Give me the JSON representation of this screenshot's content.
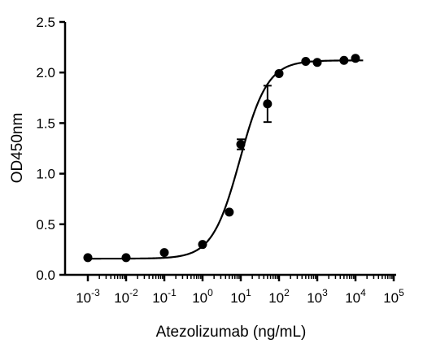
{
  "chart_data": {
    "type": "scatter",
    "title": "",
    "xlabel": "Atezolizumab (ng/mL)",
    "ylabel": "OD450nm",
    "x_scale": "log",
    "xlim": [
      0.001,
      100000
    ],
    "ylim": [
      0,
      2.5
    ],
    "x_ticks": [
      {
        "base": "10",
        "exp": "-3"
      },
      {
        "base": "10",
        "exp": "-2"
      },
      {
        "base": "10",
        "exp": "-1"
      },
      {
        "base": "10",
        "exp": "0"
      },
      {
        "base": "10",
        "exp": "1"
      },
      {
        "base": "10",
        "exp": "2"
      },
      {
        "base": "10",
        "exp": "3"
      },
      {
        "base": "10",
        "exp": "4"
      },
      {
        "base": "10",
        "exp": "5"
      }
    ],
    "y_ticks": [
      "0.0",
      "0.5",
      "1.0",
      "1.5",
      "2.0",
      "2.5"
    ],
    "grid": false,
    "points": [
      {
        "x": 0.001,
        "y": 0.17
      },
      {
        "x": 0.01,
        "y": 0.17
      },
      {
        "x": 0.1,
        "y": 0.22
      },
      {
        "x": 1,
        "y": 0.3
      },
      {
        "x": 5,
        "y": 0.62
      },
      {
        "x": 10,
        "y": 1.29,
        "err": 0.05
      },
      {
        "x": 50,
        "y": 1.69,
        "err": 0.18
      },
      {
        "x": 100,
        "y": 1.99
      },
      {
        "x": 500,
        "y": 2.11
      },
      {
        "x": 1000,
        "y": 2.1
      },
      {
        "x": 5000,
        "y": 2.12
      },
      {
        "x": 10000,
        "y": 2.14
      }
    ],
    "fit": {
      "model": "4PL",
      "bottom": 0.16,
      "top": 2.12,
      "ec50": 9.5,
      "hill": 1.2
    }
  },
  "colors": {
    "marker": "#000000",
    "axis": "#000000",
    "curve": "#000000"
  }
}
